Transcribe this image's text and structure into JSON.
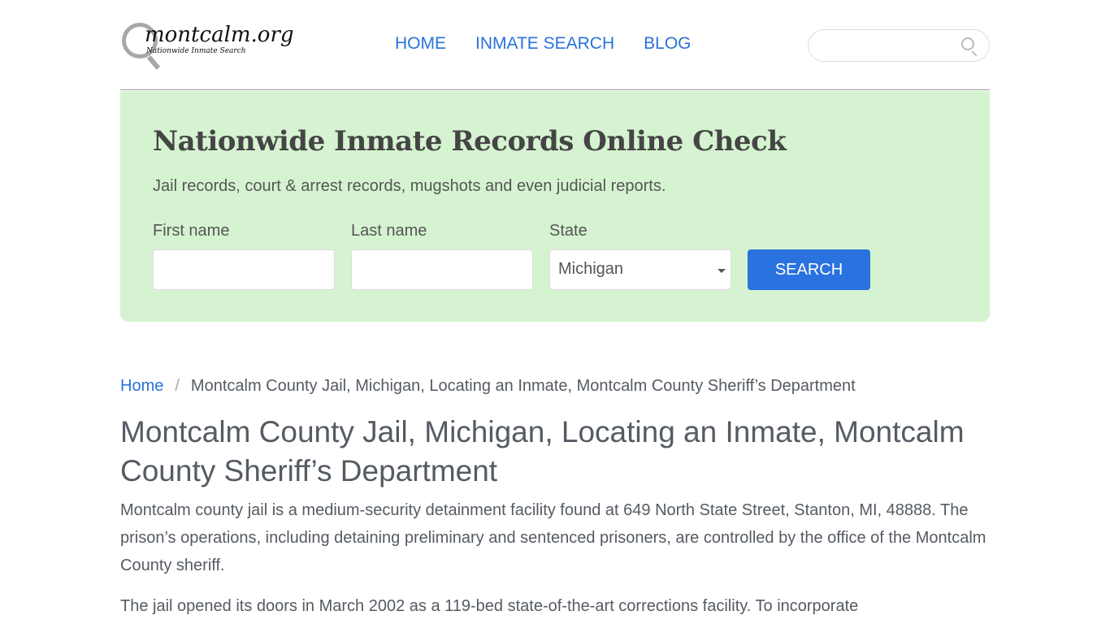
{
  "logo": {
    "name": "montcalm.org",
    "tagline": "Nationwide Inmate Search"
  },
  "nav": [
    "HOME",
    "INMATE SEARCH",
    "BLOG"
  ],
  "header_search": {
    "placeholder": ""
  },
  "hero": {
    "title": "Nationwide Inmate Records Online Check",
    "subtitle": "Jail records, court & arrest records, mugshots and even judicial reports.",
    "first_label": "First name",
    "last_label": "Last name",
    "state_label": "State",
    "state_value": "Michigan",
    "button": "SEARCH"
  },
  "breadcrumb": {
    "home": "Home",
    "sep": "/",
    "current": "Montcalm County Jail, Michigan, Locating an Inmate, Montcalm County Sheriff’s Department"
  },
  "title": "Montcalm County Jail, Michigan, Locating an Inmate, Montcalm County Sheriff’s Department",
  "paragraphs": [
    "Montcalm county jail is a medium-security detainment facility found at 649 North State Street, Stanton, MI, 48888. The prison’s operations, including detaining preliminary and sentenced prisoners, are controlled by the office of the Montcalm County sheriff.",
    "The jail opened its doors in March 2002 as a 119-bed state-of-the-art corrections facility. To incorporate"
  ]
}
